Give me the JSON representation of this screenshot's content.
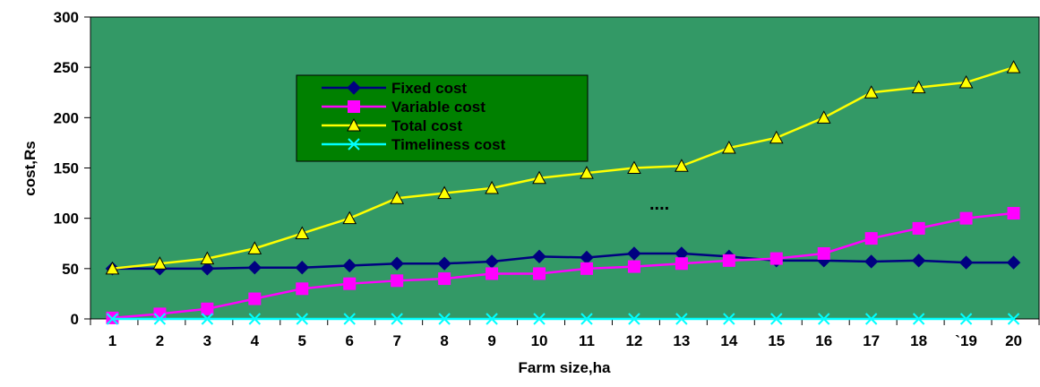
{
  "chart_data": {
    "type": "line",
    "title": "",
    "xlabel": "Farm size,ha",
    "ylabel": "cost,Rs",
    "categories": [
      "1",
      "2",
      "3",
      "4",
      "5",
      "6",
      "7",
      "8",
      "9",
      "10",
      "11",
      "12",
      "13",
      "14",
      "15",
      "16",
      "17",
      "18",
      "`19",
      "20"
    ],
    "ylim": [
      0,
      300
    ],
    "yticks": [
      0,
      50,
      100,
      150,
      200,
      250,
      300
    ],
    "grid": false,
    "legend_position": "top-left",
    "plot_background": "#339966",
    "legend_background": "#008000",
    "annotation": "....",
    "series": [
      {
        "name": "Fixed cost",
        "color": "#000080",
        "marker": "diamond",
        "values": [
          50,
          50,
          50,
          51,
          51,
          53,
          55,
          55,
          57,
          62,
          61,
          65,
          65,
          62,
          58,
          58,
          57,
          58,
          56,
          56
        ]
      },
      {
        "name": "Variable cost",
        "color": "#ff00ff",
        "marker": "square",
        "values": [
          1,
          5,
          10,
          20,
          30,
          35,
          38,
          40,
          45,
          45,
          50,
          52,
          55,
          58,
          60,
          65,
          80,
          90,
          100,
          105
        ]
      },
      {
        "name": "Total cost",
        "color": "#ffff00",
        "marker": "triangle",
        "values": [
          50,
          55,
          60,
          70,
          85,
          100,
          120,
          125,
          130,
          140,
          145,
          150,
          152,
          170,
          180,
          200,
          225,
          230,
          235,
          250
        ]
      },
      {
        "name": "Timeliness cost",
        "color": "#00ffff",
        "marker": "x",
        "values": [
          0,
          0,
          0,
          0,
          0,
          0,
          0,
          0,
          0,
          0,
          0,
          0,
          0,
          0,
          0,
          0,
          0,
          0,
          0,
          0
        ]
      }
    ]
  }
}
